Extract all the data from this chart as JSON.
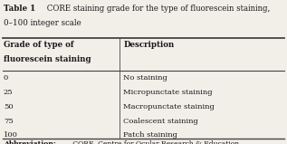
{
  "title_bold": "Table 1",
  "title_rest": " CORE staining grade for the type of fluorescein staining,",
  "title_line2": "0–100 integer scale",
  "col1_header_line1": "Grade of type of",
  "col1_header_line2": "fluorescein staining",
  "col2_header": "Description",
  "rows": [
    [
      "0",
      "No staining"
    ],
    [
      "25",
      "Micropunctate staining"
    ],
    [
      "50",
      "Macropunctate staining"
    ],
    [
      "75",
      "Coalescent staining"
    ],
    [
      "100",
      "Patch staining"
    ]
  ],
  "abbreviation_bold": "Abbreviation:",
  "abbreviation_normal": " CORE, Centre for Ocular Research & Education.",
  "bg_color": "#f2efe9",
  "text_color": "#1a1a1a",
  "col_split": 0.415,
  "title_fontsize": 6.2,
  "header_fontsize": 6.2,
  "body_fontsize": 6.0,
  "abbrev_fontsize": 5.5,
  "line_color": "#444444"
}
